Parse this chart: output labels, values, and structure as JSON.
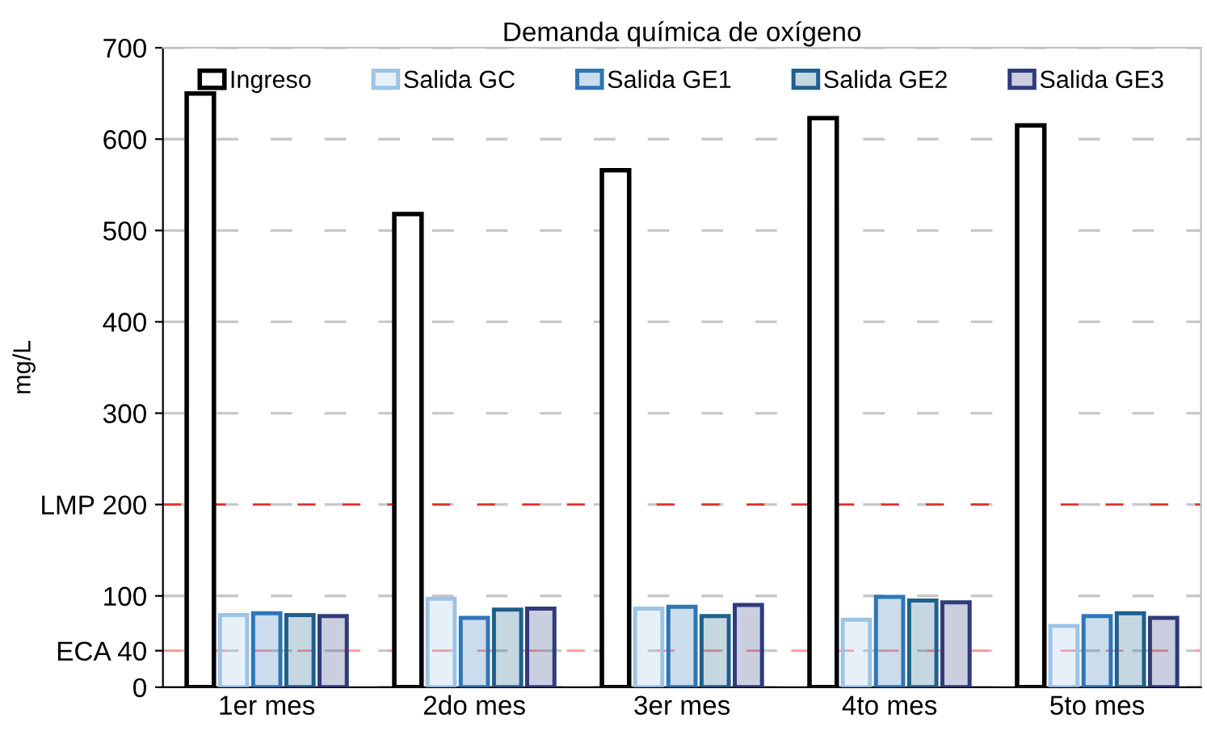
{
  "chart_data": {
    "type": "bar",
    "title": "Demanda química de oxígeno",
    "ylabel": "mg/L",
    "categories": [
      "1er mes",
      "2do mes",
      "3er mes",
      "4to mes",
      "5to mes"
    ],
    "series": [
      {
        "name": "Ingreso",
        "color": "#000000",
        "values": [
          650,
          518,
          566,
          623,
          615
        ]
      },
      {
        "name": "Salida GC",
        "color": "#9dc3e6",
        "values": [
          79,
          97,
          86,
          74,
          67
        ]
      },
      {
        "name": "Salida GE1",
        "color": "#2e75b6",
        "values": [
          81,
          76,
          88,
          99,
          78
        ]
      },
      {
        "name": "Salida GE2",
        "color": "#1f5f8b",
        "values": [
          79,
          85,
          78,
          95,
          81
        ]
      },
      {
        "name": "Salida GE3",
        "color": "#2f3b7a",
        "values": [
          78,
          86,
          90,
          93,
          76
        ]
      }
    ],
    "ylim": [
      0,
      700
    ],
    "yticks": [
      0,
      {
        "value": 40,
        "label": "ECA 40"
      },
      100,
      {
        "value": 200,
        "label": "LMP 200"
      },
      300,
      400,
      500,
      600,
      700
    ],
    "ref_lines": [
      {
        "axis": "y",
        "value": 40,
        "color": "#ff9999",
        "line_style": "dashed"
      },
      {
        "axis": "y",
        "value": 200,
        "color": "#e03030",
        "line_style": "dashed"
      }
    ],
    "grid": "y",
    "legend": "top"
  }
}
